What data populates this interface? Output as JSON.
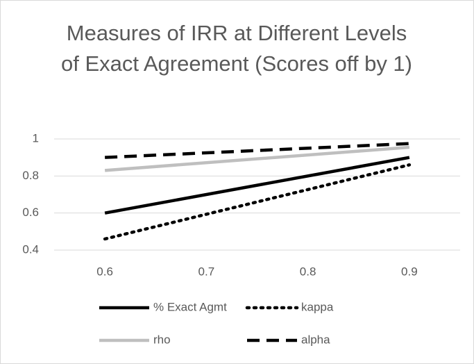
{
  "chart_data": {
    "type": "line",
    "title": "Measures of IRR at Different Levels of Exact Agreement (Scores off by 1)",
    "x": [
      0.6,
      0.9
    ],
    "xlim": [
      0.55,
      0.95
    ],
    "xticks": [
      0.6,
      0.7,
      0.8,
      0.9
    ],
    "ylim": [
      0.4,
      1
    ],
    "yticks": [
      0.4,
      0.6,
      0.8,
      1
    ],
    "grid": true,
    "series": [
      {
        "name": "% Exact Agmt",
        "color": "#000000",
        "dash": "solid",
        "values": [
          0.6,
          0.9
        ]
      },
      {
        "name": "kappa",
        "color": "#000000",
        "dash": "dotted",
        "values": [
          0.46,
          0.86
        ]
      },
      {
        "name": "rho",
        "color": "#bfbfbf",
        "dash": "solid",
        "values": [
          0.83,
          0.955
        ]
      },
      {
        "name": "alpha",
        "color": "#000000",
        "dash": "dashed",
        "values": [
          0.9,
          0.975
        ]
      }
    ]
  }
}
